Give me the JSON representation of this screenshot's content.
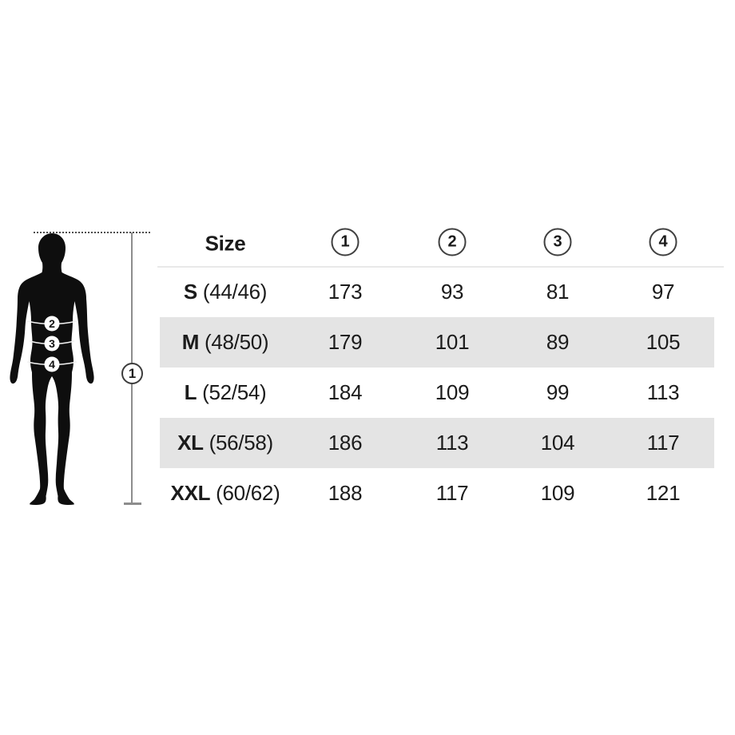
{
  "figure": {
    "height_marker_label": "1",
    "body_marker_labels": [
      "2",
      "3",
      "4"
    ]
  },
  "table": {
    "header": {
      "size_label": "Size",
      "measure_columns": [
        "1",
        "2",
        "3",
        "4"
      ]
    },
    "rows": [
      {
        "size": "S",
        "range": "(44/46)",
        "values": [
          "173",
          "93",
          "81",
          "97"
        ],
        "shaded": false
      },
      {
        "size": "M",
        "range": "(48/50)",
        "values": [
          "179",
          "101",
          "89",
          "105"
        ],
        "shaded": true
      },
      {
        "size": "L",
        "range": "(52/54)",
        "values": [
          "184",
          "109",
          "99",
          "113"
        ],
        "shaded": false
      },
      {
        "size": "XL",
        "range": "(56/58)",
        "values": [
          "186",
          "113",
          "104",
          "117"
        ],
        "shaded": true
      },
      {
        "size": "XXL",
        "range": "(60/62)",
        "values": [
          "188",
          "117",
          "109",
          "121"
        ],
        "shaded": false
      }
    ]
  },
  "chart_data": {
    "type": "table",
    "columns": [
      "Size",
      "1",
      "2",
      "3",
      "4"
    ],
    "rows": [
      [
        "S (44/46)",
        173,
        93,
        81,
        97
      ],
      [
        "M (48/50)",
        179,
        101,
        89,
        105
      ],
      [
        "L (52/54)",
        184,
        109,
        99,
        113
      ],
      [
        "XL (56/58)",
        186,
        113,
        104,
        117
      ],
      [
        "XXL (60/62)",
        188,
        117,
        109,
        121
      ]
    ],
    "figure_markers": [
      "1",
      "2",
      "3",
      "4"
    ],
    "shaded_rows": [
      "M",
      "XL"
    ],
    "legend_position": "none",
    "grid": false
  },
  "colors": {
    "background": "#ffffff",
    "text": "#1b1b1b",
    "row_shade": "#e4e4e4",
    "header_divider": "#e9e9e9",
    "silhouette": "#0e0e0e",
    "measure_line": "#8d8d8d"
  }
}
